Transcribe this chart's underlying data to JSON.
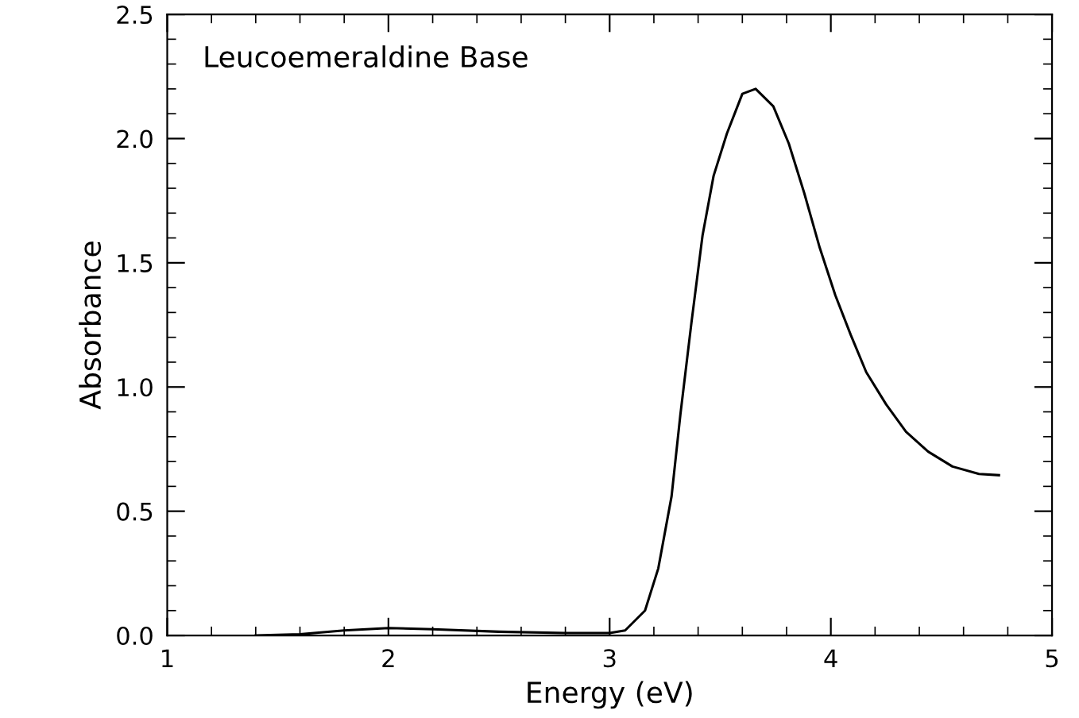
{
  "chart_data": {
    "type": "line",
    "xlabel": "Energy (eV)",
    "ylabel": "Absorbance",
    "annotations": [
      "Leucoemeraldine Base"
    ],
    "x": [
      1.4,
      1.6,
      1.8,
      2.0,
      2.2,
      2.5,
      2.8,
      3.0,
      3.07,
      3.16,
      3.22,
      3.28,
      3.32,
      3.37,
      3.42,
      3.47,
      3.53,
      3.6,
      3.66,
      3.74,
      3.81,
      3.88,
      3.95,
      4.02,
      4.09,
      4.16,
      4.25,
      4.34,
      4.44,
      4.55,
      4.67,
      4.76
    ],
    "series": [
      {
        "color": "#000000",
        "values": [
          0.0,
          0.005,
          0.02,
          0.03,
          0.025,
          0.015,
          0.01,
          0.01,
          0.02,
          0.1,
          0.27,
          0.56,
          0.89,
          1.26,
          1.61,
          1.85,
          2.02,
          2.18,
          2.2,
          2.13,
          1.98,
          1.78,
          1.56,
          1.37,
          1.21,
          1.06,
          0.93,
          0.82,
          0.74,
          0.68,
          0.65,
          0.645
        ]
      }
    ],
    "xlim": [
      1,
      5
    ],
    "ylim": [
      0,
      2.5
    ],
    "xticks": [
      1,
      2,
      3,
      4,
      5
    ],
    "yticks": [
      {
        "value": 0,
        "label": "0.0"
      },
      {
        "value": 0.5,
        "label": "0.5"
      },
      {
        "value": 1,
        "label": "1.0"
      },
      {
        "value": 1.5,
        "label": "1.5"
      },
      {
        "value": 2,
        "label": "2.0"
      },
      {
        "value": 2.5,
        "label": "2.5"
      }
    ],
    "grid": false,
    "marker": "none",
    "line_style": "solid"
  }
}
